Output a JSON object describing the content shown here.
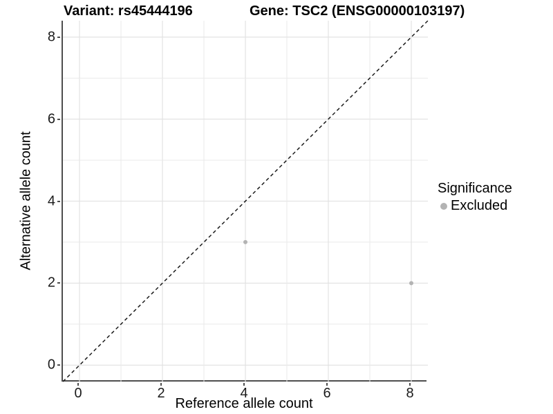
{
  "titles": {
    "variant": "Variant: rs45444196",
    "gene": "Gene: TSC2 (ENSG00000103197)"
  },
  "axes": {
    "x_label": "Reference allele count",
    "y_label": "Alternative allele count"
  },
  "legend": {
    "title": "Significance",
    "items": [
      {
        "label": "Excluded",
        "color": "#b3b3b3"
      }
    ]
  },
  "colors": {
    "background": "#ffffff",
    "axis_line": "#4d4d4d",
    "grid_major": "#e2e2e2",
    "grid_minor": "#eaeaea",
    "reference_line": "#1a1a1a",
    "point": "#b3b3b3",
    "text": "#000000"
  },
  "chart_data": {
    "type": "scatter",
    "title": "Variant: rs45444196    Gene: TSC2 (ENSG00000103197)",
    "xlabel": "Reference allele count",
    "ylabel": "Alternative allele count",
    "xlim": [
      -0.4,
      8.4
    ],
    "ylim": [
      -0.4,
      8.4
    ],
    "x_ticks": [
      0,
      2,
      4,
      6,
      8
    ],
    "y_ticks": [
      0,
      2,
      4,
      6,
      8
    ],
    "grid": "on",
    "grid_major_every": 2,
    "grid_minor_every": 1,
    "legend_position": "right",
    "series": [
      {
        "name": "Excluded",
        "color": "#b3b3b3",
        "points": [
          {
            "x": 4,
            "y": 3
          },
          {
            "x": 8,
            "y": 2
          }
        ]
      }
    ],
    "reference_line": {
      "type": "identity",
      "style": "dashed",
      "from": [
        -0.4,
        -0.4
      ],
      "to": [
        8.4,
        8.4
      ]
    }
  }
}
